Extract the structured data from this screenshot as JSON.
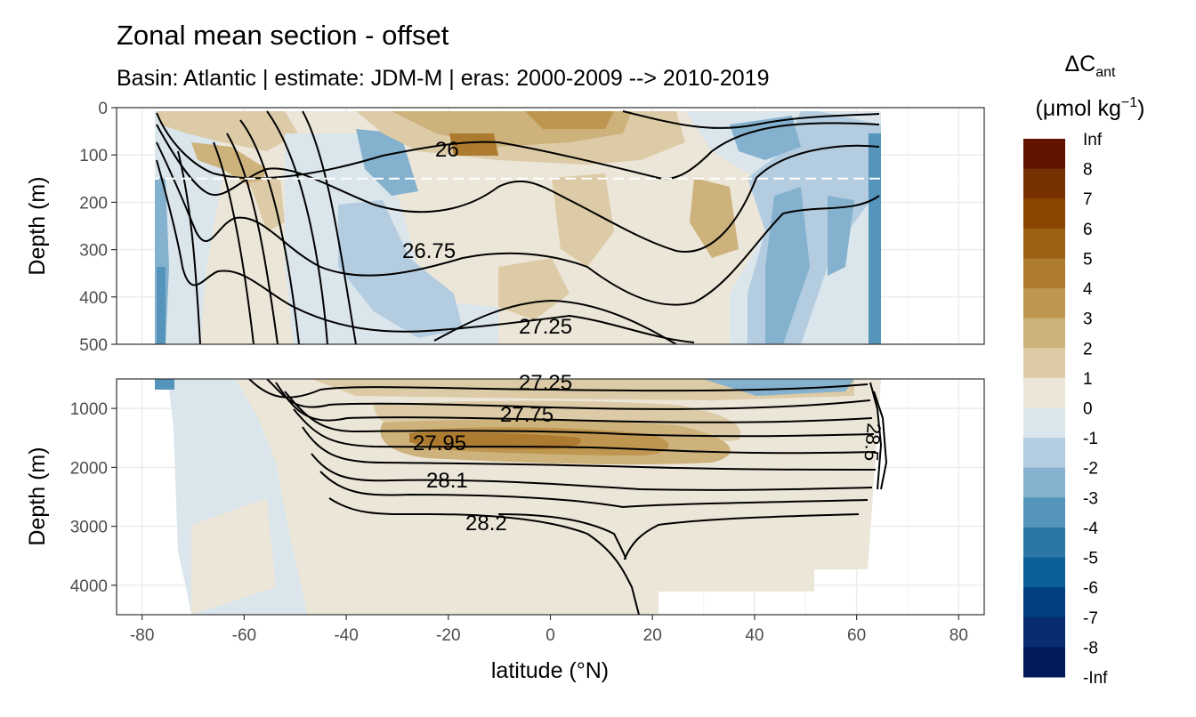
{
  "chart_data": {
    "type": "heatmap",
    "title": "Zonal mean section - offset",
    "subtitle": "Basin: Atlantic | estimate: JDM-M | eras: 2000-2009 --> 2010-2019",
    "xlabel": "latitude (°N)",
    "ylabel": "Depth (m)",
    "x_ticks": [
      "-80",
      "-60",
      "-40",
      "-20",
      "0",
      "20",
      "40",
      "60",
      "80"
    ],
    "xlim": [
      -85,
      85
    ],
    "panels": [
      {
        "name": "upper",
        "ylim": [
          0,
          500
        ],
        "y_ticks": [
          "0",
          "100",
          "200",
          "300",
          "400",
          "500"
        ],
        "reference_depth": 150
      },
      {
        "name": "lower",
        "ylim": [
          500,
          4500
        ],
        "y_ticks": [
          "1000",
          "2000",
          "3000",
          "4000"
        ]
      }
    ],
    "colorbar": {
      "title": "ΔC",
      "title_sub": "ant",
      "units": "(μmol kg",
      "units_sup": "−1",
      "units_close": ")",
      "labels": [
        "Inf",
        "8",
        "7",
        "6",
        "5",
        "4",
        "3",
        "2",
        "1",
        "0",
        "-1",
        "-2",
        "-3",
        "-4",
        "-5",
        "-6",
        "-7",
        "-8",
        "-Inf"
      ],
      "colors": [
        "#611300",
        "#783100",
        "#8b4500",
        "#9e6012",
        "#ad7b30",
        "#bf964f",
        "#cdb27c",
        "#dccba6",
        "#ece6d9",
        "#dae5ec",
        "#b3cce0",
        "#84b1ce",
        "#5594bb",
        "#2a77a6",
        "#0d5f98",
        "#003f80",
        "#072c70",
        "#001a5c"
      ]
    },
    "isopycnal_labels": [
      {
        "text": "26",
        "lat": -19,
        "depth": 87
      },
      {
        "text": "26.75",
        "lat": -22,
        "depth": 300
      },
      {
        "text": "27.25",
        "lat": 0,
        "depth": 462
      },
      {
        "text": "27.25",
        "lat": 0,
        "depth": 560
      },
      {
        "text": "27.75",
        "lat": -3,
        "depth": 1110
      },
      {
        "text": "27.95",
        "lat": -20,
        "depth": 1560
      },
      {
        "text": "28.1",
        "lat": -19,
        "depth": 2220
      },
      {
        "text": "28.2",
        "lat": -12,
        "depth": 2920
      },
      {
        "text": "28.5",
        "lat": 63,
        "depth": 1400
      }
    ]
  }
}
